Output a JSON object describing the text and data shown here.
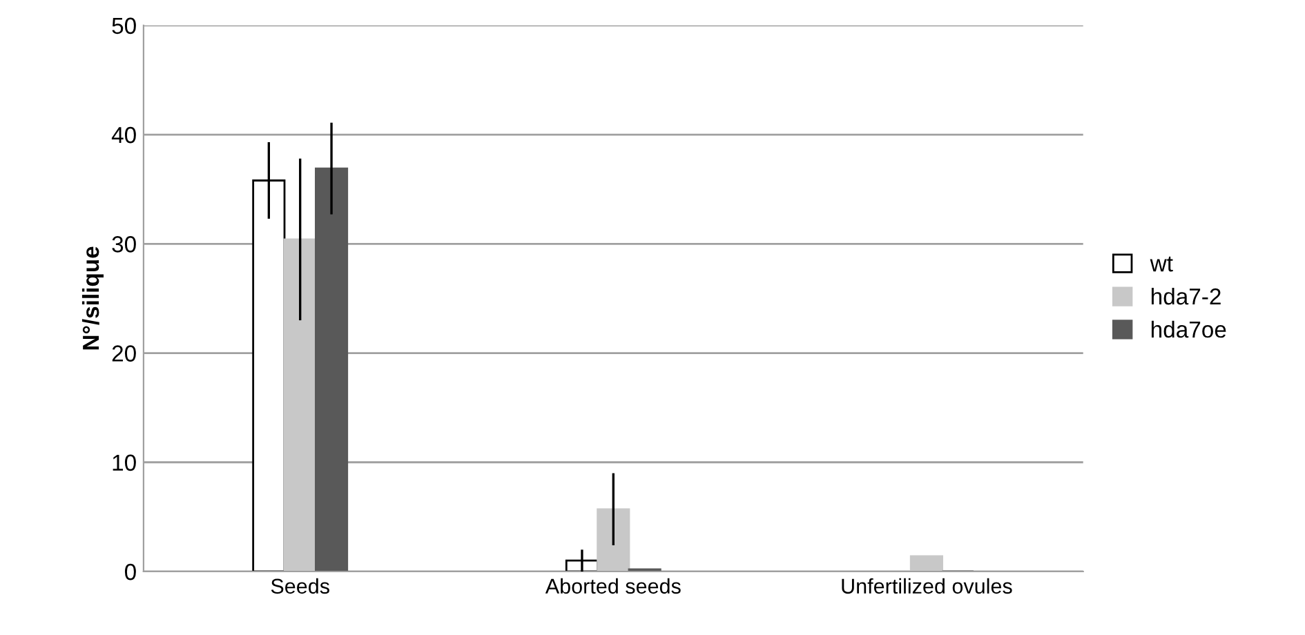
{
  "chart_data": {
    "type": "bar",
    "ylabel": "N°/silique",
    "categories": [
      "Seeds",
      "Aborted seeds",
      "Unfertilized ovules"
    ],
    "series": [
      {
        "name": "wt",
        "color": "#ffffff",
        "values": [
          35.8,
          1.0,
          null
        ],
        "errors": [
          3.5,
          1.0,
          null
        ]
      },
      {
        "name": "hda7-2",
        "color": "#c8c8c8",
        "values": [
          30.4,
          5.7,
          1.4
        ],
        "errors": [
          7.4,
          3.3,
          null
        ]
      },
      {
        "name": "hda7oe",
        "color": "#595959",
        "values": [
          36.9,
          0.2,
          0
        ],
        "errors": [
          4.2,
          null,
          null
        ]
      }
    ],
    "ylim": [
      0,
      50
    ],
    "yticks": [
      0,
      10,
      20,
      30,
      40,
      50
    ],
    "grid": "y",
    "legend": "right"
  }
}
